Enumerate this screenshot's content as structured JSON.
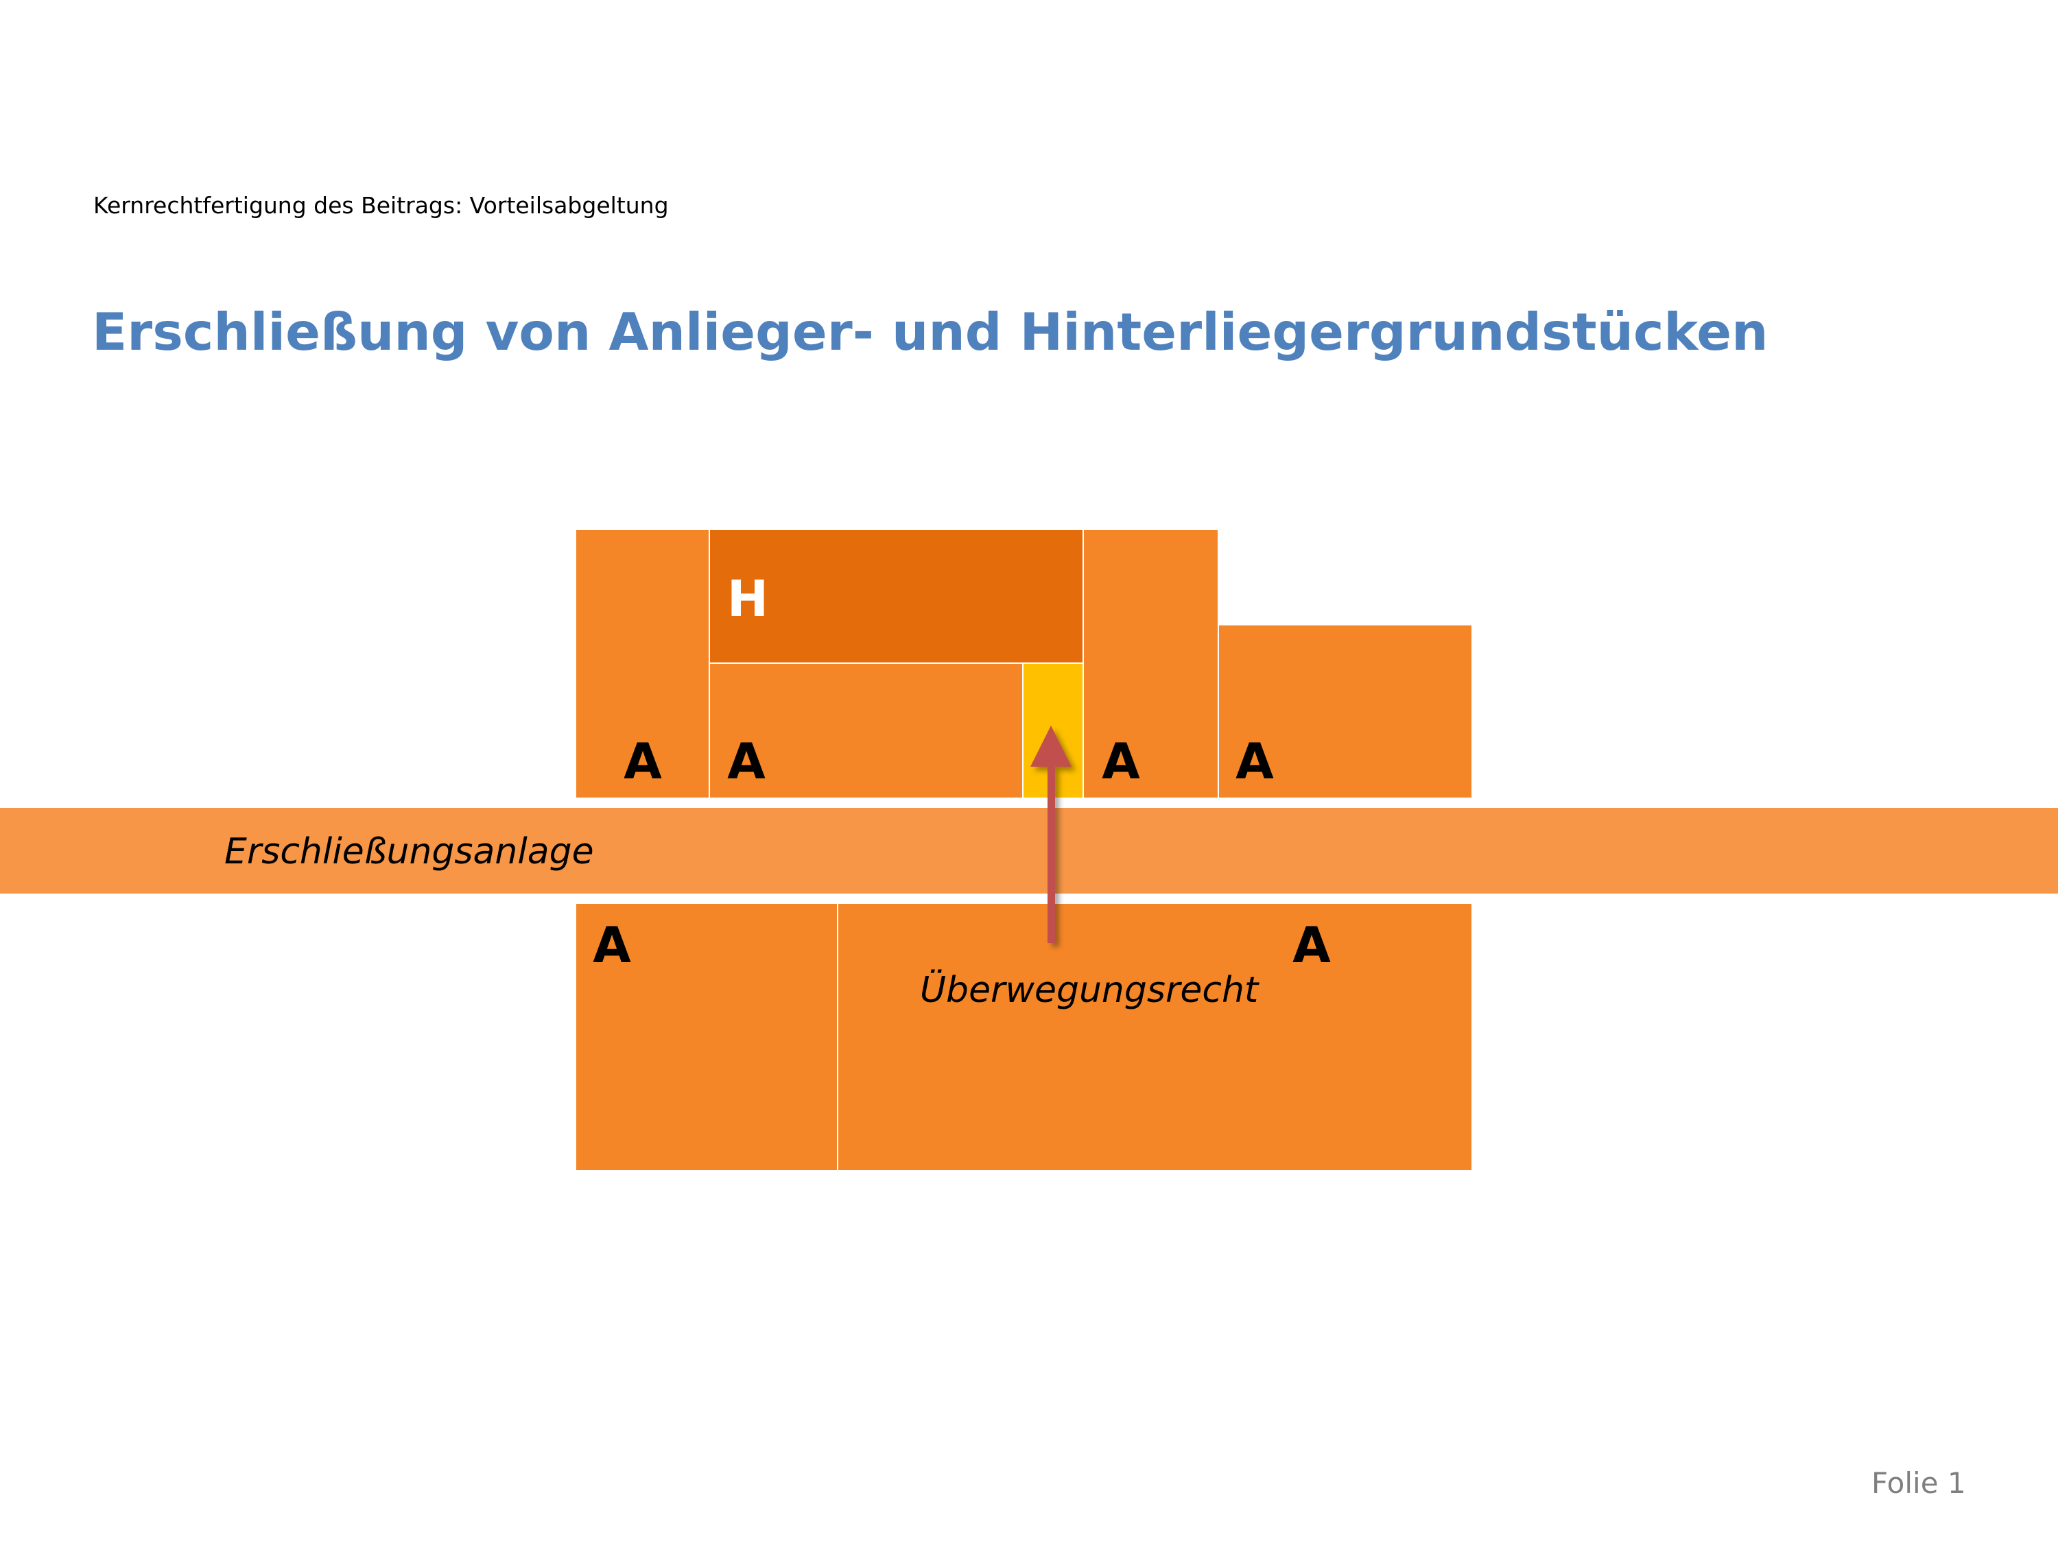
{
  "header": {
    "subtitle": "Kernrechtfertigung des Beitrags: Vorteilsabgeltung",
    "title": "Erschließung von Anlieger- und Hinterliegergrundstücken"
  },
  "diagram": {
    "road_label": "Erschließungsanlage",
    "right_of_way_label": "Überwegungsrecht",
    "hinterlieger_label": "H",
    "anlieger_label": "A",
    "colors": {
      "anlieger": "#F58628",
      "hinterlieger": "#E46C0A",
      "road": "#F79646",
      "access_strip": "#FFC000",
      "arrow": "#C0504D"
    }
  },
  "footer": {
    "slide_number": "Folie 1"
  }
}
